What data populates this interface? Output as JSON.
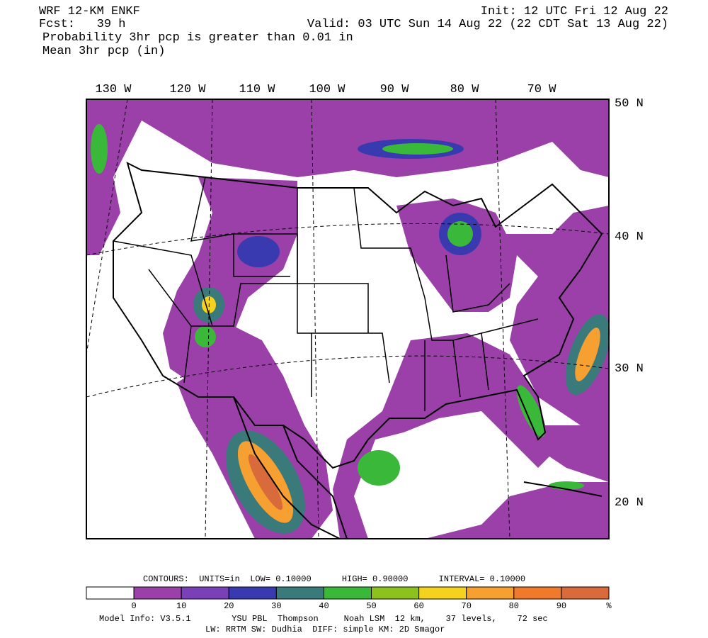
{
  "header": {
    "title": "WRF 12-KM ENKF",
    "fcst": "Fcst:   39 h",
    "init": "Init: 12 UTC Fri 12 Aug 22",
    "valid": "Valid: 03 UTC Sun 14 Aug 22 (22 CDT Sat 13 Aug 22)",
    "field1": "Probability 3hr pcp is greater than 0.01 in",
    "field2": "Mean 3hr pcp (in)"
  },
  "map": {
    "lon_labels": [
      "130 W",
      "120 W",
      "110 W",
      "100 W",
      "90 W",
      "80 W",
      "70 W"
    ],
    "lat_labels": [
      "50 N",
      "40 N",
      "30 N",
      "20 N"
    ]
  },
  "colorbar": {
    "contours": "CONTOURS:  UNITS=in  LOW= 0.10000      HIGH= 0.90000      INTERVAL= 0.10000",
    "labels": [
      "0",
      "10",
      "20",
      "30",
      "40",
      "50",
      "60",
      "70",
      "80",
      "90",
      "%"
    ],
    "colors": [
      "#ffffff",
      "#9a40a8",
      "#7a40b8",
      "#3a3ab0",
      "#3a7a7a",
      "#3ab83a",
      "#8cc21e",
      "#f5d21e",
      "#f5a030",
      "#f07a2c",
      "#d86a3c"
    ]
  },
  "footer": {
    "line1": "Model Info: V3.5.1        YSU PBL  Thompson     Noah LSM  12 km,    37 levels,    72 sec",
    "line2": "LW: RRTM SW: Dudhia  DIFF: simple KM: 2D Smagor"
  }
}
